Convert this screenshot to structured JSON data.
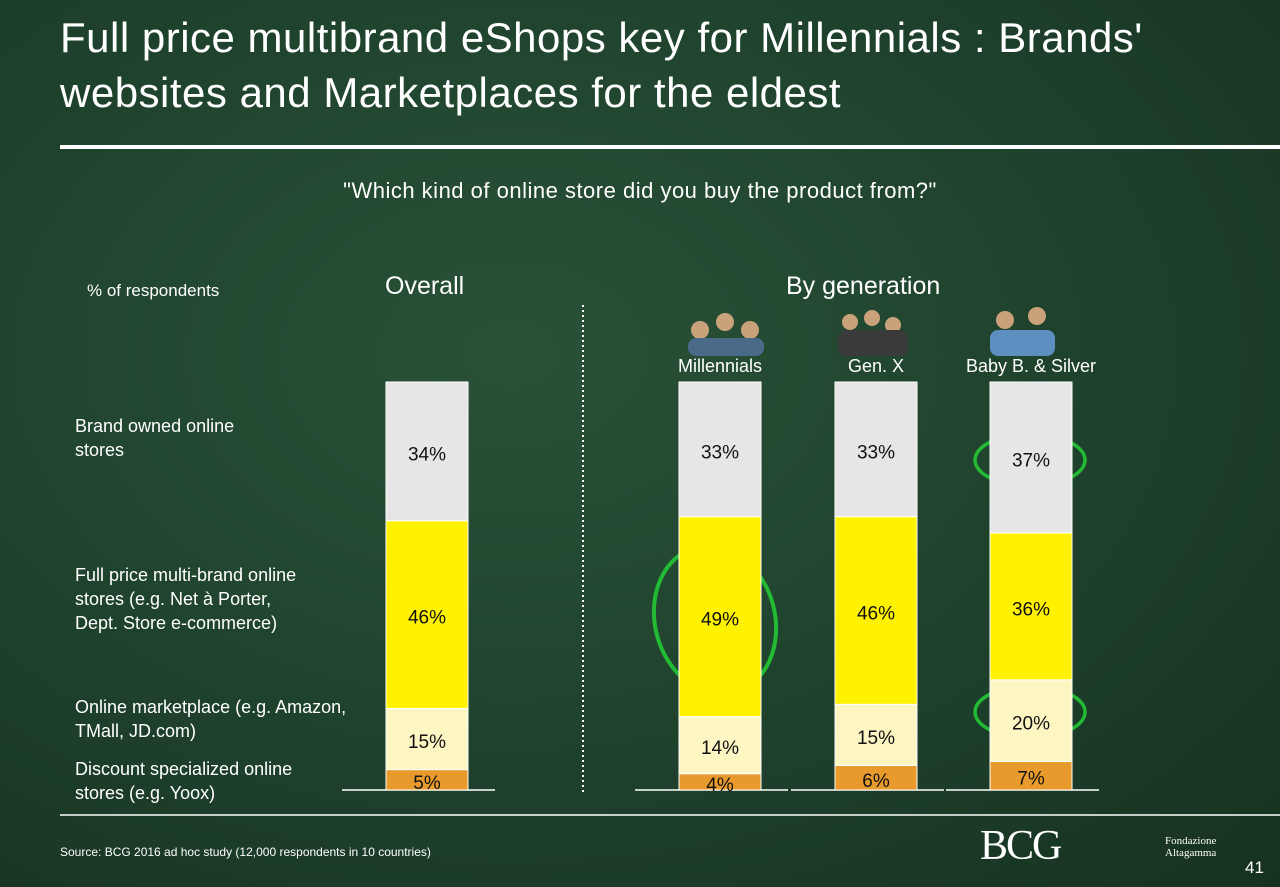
{
  "chart_data": {
    "type": "stacked_bar",
    "title": "Full price multibrand eShops key for Millennials : Brands' websites and Marketplaces for the eldest",
    "subtitle": "\"Which kind of online store did you buy the product from?\"",
    "y_label": "% of respondents",
    "group_labels": [
      "Overall",
      "By generation"
    ],
    "categories": [
      "Overall",
      "Millennials",
      "Gen. X",
      "Baby B. & Silver"
    ],
    "ylim": [
      0,
      100
    ],
    "series": [
      {
        "name": "Discount specialized online stores (e.g. Yoox)",
        "color": "#e89a2c",
        "values": [
          5,
          4,
          6,
          7
        ],
        "value_labels": [
          "5%",
          "4%",
          "6%",
          "7%"
        ]
      },
      {
        "name": "Online marketplace (e.g. Amazon, TMall, JD.com)",
        "color": "#fdf6c3",
        "values": [
          15,
          14,
          15,
          20
        ],
        "value_labels": [
          "15%",
          "14%",
          "15%",
          "20%"
        ]
      },
      {
        "name": "Full price multi-brand online stores (e.g. Net à Porter, Dept. Store e-commerce)",
        "color": "#fff200",
        "values": [
          46,
          49,
          46,
          36
        ],
        "value_labels": [
          "46%",
          "49%",
          "46%",
          "36%"
        ]
      },
      {
        "name": "Brand owned online stores",
        "color": "#e6e6e6",
        "values": [
          34,
          33,
          33,
          37
        ],
        "value_labels": [
          "34%",
          "33%",
          "33%",
          "37%"
        ]
      }
    ],
    "source": "Source: BCG 2016 ad hoc study (12,000 respondents in 10 countries)",
    "logos": [
      "BCG",
      "Fondazione Altagamma"
    ],
    "page_number": "41"
  }
}
